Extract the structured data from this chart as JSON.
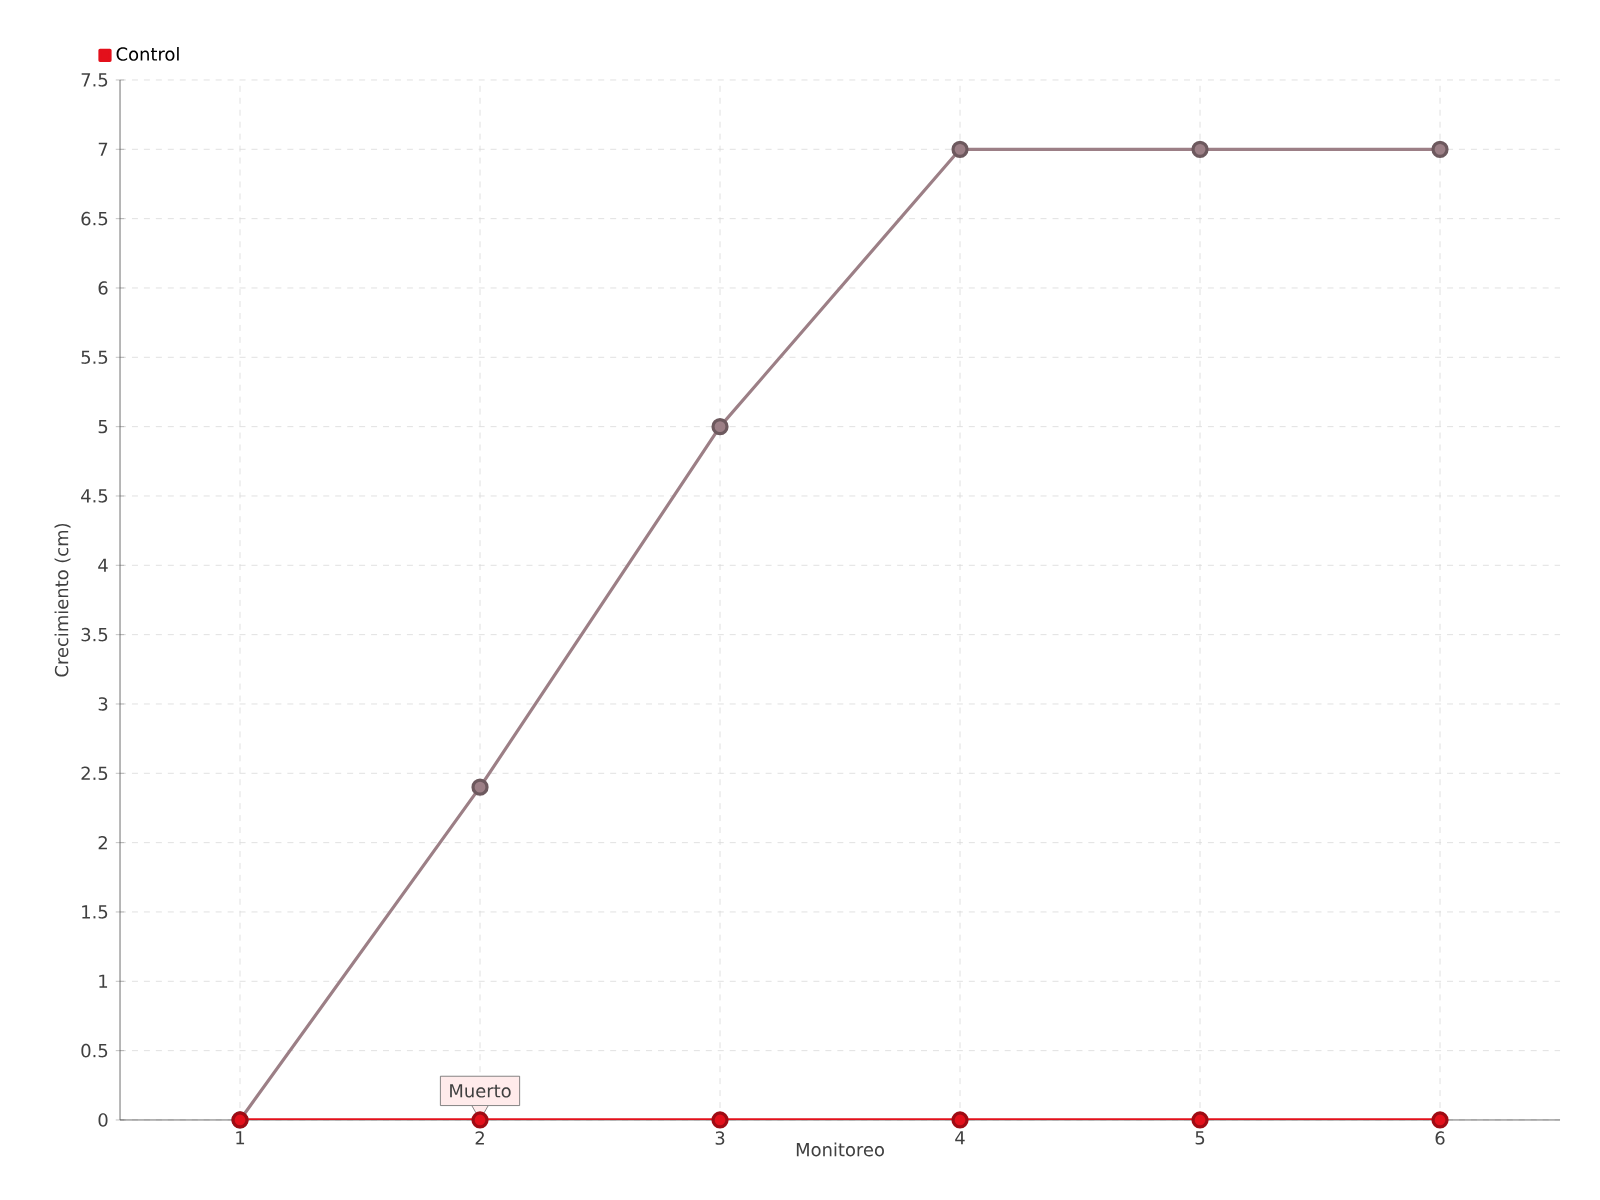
{
  "chart_data": {
    "type": "line",
    "xlabel": "Monitoreo",
    "ylabel": "Crecimiento (cm)",
    "x": [
      1,
      2,
      3,
      4,
      5,
      6
    ],
    "series": [
      {
        "color": "#9c7f86",
        "values": [
          0,
          2.4,
          5,
          7,
          7,
          7
        ]
      },
      {
        "name": "Control",
        "color": "#e3101b",
        "values": [
          0,
          0,
          0,
          0,
          0,
          0
        ]
      }
    ],
    "xlim": [
      0.5,
      6.5
    ],
    "xticks": [
      1,
      2,
      3,
      4,
      5,
      6
    ],
    "ylim": [
      0,
      7.5
    ],
    "yticks": [
      0,
      0.5,
      1,
      1.5,
      2,
      2.5,
      3,
      3.5,
      4,
      4.5,
      5,
      5.5,
      6,
      6.5,
      7,
      7.5
    ],
    "grid": true,
    "legend": "top left",
    "marker": "circle",
    "line_style": "solid",
    "annotations": [
      {
        "text": "Muerto",
        "x": 2,
        "y": 0
      }
    ]
  }
}
